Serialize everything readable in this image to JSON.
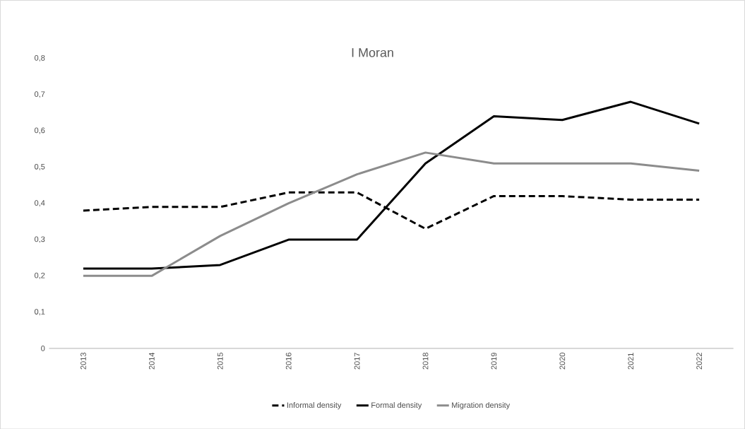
{
  "chart_data": {
    "type": "line",
    "title": "I Moran",
    "categories": [
      "2013",
      "2014",
      "2015",
      "2016",
      "2017",
      "2018",
      "2019",
      "2020",
      "2021",
      "2022"
    ],
    "series": [
      {
        "name": "Informal density",
        "color": "#000000",
        "line_style": "dashed",
        "values": [
          0.38,
          0.39,
          0.39,
          0.43,
          0.43,
          0.33,
          0.42,
          0.42,
          0.41,
          0.41
        ]
      },
      {
        "name": "Formal density",
        "color": "#000000",
        "line_style": "solid",
        "values": [
          0.22,
          0.22,
          0.23,
          0.3,
          0.3,
          0.51,
          0.64,
          0.63,
          0.68,
          0.62
        ]
      },
      {
        "name": "Migration density",
        "color": "#8c8c8c",
        "line_style": "solid",
        "values": [
          0.2,
          0.2,
          0.31,
          0.4,
          0.48,
          0.54,
          0.51,
          0.51,
          0.51,
          0.49
        ]
      }
    ],
    "ylim": [
      0,
      0.8
    ],
    "yticks": [
      0,
      {
        "value": 0.1,
        "label": "0,1"
      },
      {
        "value": 0.2,
        "label": "0,2"
      },
      {
        "value": 0.3,
        "label": "0,3"
      },
      {
        "value": 0.4,
        "label": "0,4"
      },
      {
        "value": 0.5,
        "label": "0,5"
      },
      {
        "value": 0.6,
        "label": "0,6"
      },
      {
        "value": 0.7,
        "label": "0,7"
      },
      {
        "value": 0.8,
        "label": "0,8"
      }
    ],
    "legend": "bottom"
  }
}
